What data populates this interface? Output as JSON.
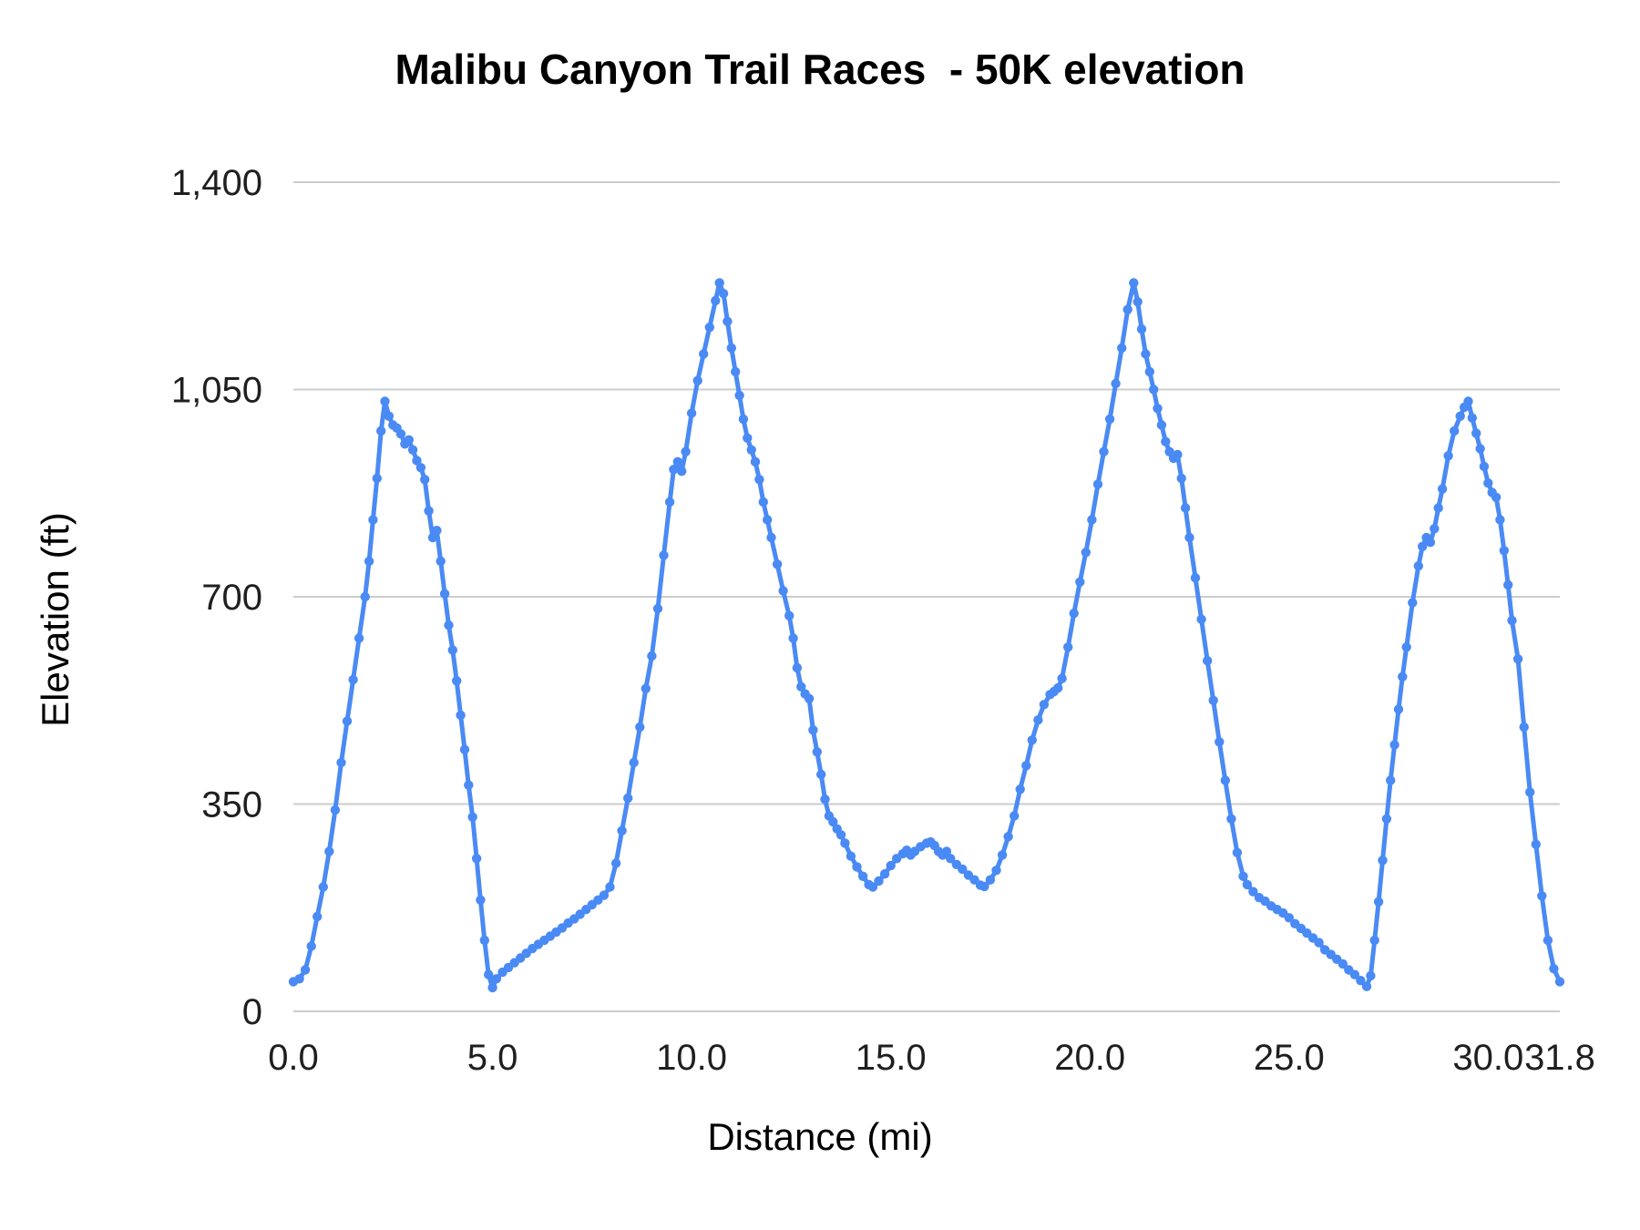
{
  "chart_data": {
    "type": "line",
    "title": "Malibu Canyon Trail Races  - 50K elevation",
    "xlabel": "Distance (mi)",
    "ylabel": "Elevation (ft)",
    "xlim": [
      0,
      31.8
    ],
    "ylim": [
      0,
      1400
    ],
    "grid": "horizontal",
    "legend": "none",
    "line_color": "#4a8af4",
    "grid_color": "#cccccc",
    "text_color": "#000000",
    "marker": true,
    "x_ticks": [
      {
        "v": 0,
        "label": "0.0"
      },
      {
        "v": 5,
        "label": "5.0"
      },
      {
        "v": 10,
        "label": "10.0"
      },
      {
        "v": 15,
        "label": "15.0"
      },
      {
        "v": 20,
        "label": "20.0"
      },
      {
        "v": 25,
        "label": "25.0"
      },
      {
        "v": 30,
        "label": "30.0"
      },
      {
        "v": 31.8,
        "label": "31.8"
      }
    ],
    "y_ticks": [
      {
        "v": 0,
        "label": "0"
      },
      {
        "v": 350,
        "label": "350"
      },
      {
        "v": 700,
        "label": "700"
      },
      {
        "v": 1050,
        "label": "1,050"
      },
      {
        "v": 1400,
        "label": "1,400"
      }
    ],
    "series": [
      {
        "name": "elevation",
        "points": [
          [
            0,
            50
          ],
          [
            0.15,
            55
          ],
          [
            0.3,
            70
          ],
          [
            0.45,
            110
          ],
          [
            0.6,
            160
          ],
          [
            0.75,
            210
          ],
          [
            0.9,
            270
          ],
          [
            1.05,
            340
          ],
          [
            1.2,
            420
          ],
          [
            1.35,
            490
          ],
          [
            1.5,
            560
          ],
          [
            1.65,
            630
          ],
          [
            1.8,
            700
          ],
          [
            1.9,
            760
          ],
          [
            2,
            830
          ],
          [
            2.1,
            900
          ],
          [
            2.2,
            980
          ],
          [
            2.3,
            1030
          ],
          [
            2.4,
            1005
          ],
          [
            2.5,
            990
          ],
          [
            2.6,
            985
          ],
          [
            2.7,
            975
          ],
          [
            2.8,
            958
          ],
          [
            2.9,
            965
          ],
          [
            3,
            948
          ],
          [
            3.1,
            930
          ],
          [
            3.2,
            918
          ],
          [
            3.3,
            898
          ],
          [
            3.4,
            845
          ],
          [
            3.5,
            800
          ],
          [
            3.6,
            812
          ],
          [
            3.7,
            760
          ],
          [
            3.8,
            705
          ],
          [
            3.9,
            652
          ],
          [
            4,
            610
          ],
          [
            4.1,
            558
          ],
          [
            4.2,
            500
          ],
          [
            4.3,
            442
          ],
          [
            4.4,
            382
          ],
          [
            4.5,
            328
          ],
          [
            4.6,
            258
          ],
          [
            4.7,
            188
          ],
          [
            4.8,
            120
          ],
          [
            4.9,
            62
          ],
          [
            5,
            40
          ],
          [
            5.1,
            55
          ],
          [
            5.25,
            66
          ],
          [
            5.4,
            74
          ],
          [
            5.55,
            82
          ],
          [
            5.7,
            90
          ],
          [
            5.85,
            98
          ],
          [
            6,
            106
          ],
          [
            6.15,
            113
          ],
          [
            6.3,
            120
          ],
          [
            6.45,
            127
          ],
          [
            6.6,
            134
          ],
          [
            6.75,
            141
          ],
          [
            6.9,
            149
          ],
          [
            7.05,
            156
          ],
          [
            7.2,
            164
          ],
          [
            7.35,
            172
          ],
          [
            7.5,
            180
          ],
          [
            7.65,
            188
          ],
          [
            7.8,
            196
          ],
          [
            7.95,
            210
          ],
          [
            8.1,
            250
          ],
          [
            8.25,
            305
          ],
          [
            8.4,
            360
          ],
          [
            8.55,
            420
          ],
          [
            8.7,
            480
          ],
          [
            8.85,
            545
          ],
          [
            9,
            600
          ],
          [
            9.15,
            680
          ],
          [
            9.3,
            770
          ],
          [
            9.45,
            860
          ],
          [
            9.55,
            915
          ],
          [
            9.65,
            928
          ],
          [
            9.75,
            912
          ],
          [
            9.85,
            945
          ],
          [
            10,
            1010
          ],
          [
            10.15,
            1065
          ],
          [
            10.3,
            1110
          ],
          [
            10.45,
            1155
          ],
          [
            10.6,
            1200
          ],
          [
            10.7,
            1230
          ],
          [
            10.8,
            1212
          ],
          [
            10.9,
            1165
          ],
          [
            11,
            1120
          ],
          [
            11.1,
            1080
          ],
          [
            11.2,
            1040
          ],
          [
            11.3,
            1000
          ],
          [
            11.4,
            968
          ],
          [
            11.5,
            948
          ],
          [
            11.6,
            928
          ],
          [
            11.7,
            898
          ],
          [
            11.8,
            860
          ],
          [
            11.9,
            830
          ],
          [
            12,
            800
          ],
          [
            12.15,
            755
          ],
          [
            12.3,
            710
          ],
          [
            12.45,
            668
          ],
          [
            12.55,
            630
          ],
          [
            12.65,
            580
          ],
          [
            12.75,
            548
          ],
          [
            12.85,
            536
          ],
          [
            12.95,
            528
          ],
          [
            13.05,
            475
          ],
          [
            13.15,
            438
          ],
          [
            13.25,
            400
          ],
          [
            13.35,
            358
          ],
          [
            13.45,
            330
          ],
          [
            13.55,
            320
          ],
          [
            13.65,
            308
          ],
          [
            13.75,
            298
          ],
          [
            13.85,
            284
          ],
          [
            14,
            262
          ],
          [
            14.15,
            244
          ],
          [
            14.3,
            228
          ],
          [
            14.45,
            214
          ],
          [
            14.55,
            210
          ],
          [
            14.7,
            220
          ],
          [
            14.85,
            232
          ],
          [
            15,
            246
          ],
          [
            15.15,
            258
          ],
          [
            15.3,
            266
          ],
          [
            15.4,
            272
          ],
          [
            15.5,
            264
          ],
          [
            15.6,
            270
          ],
          [
            15.75,
            278
          ],
          [
            15.9,
            284
          ],
          [
            16,
            286
          ],
          [
            16.1,
            280
          ],
          [
            16.2,
            270
          ],
          [
            16.3,
            264
          ],
          [
            16.4,
            270
          ],
          [
            16.5,
            258
          ],
          [
            16.65,
            248
          ],
          [
            16.8,
            240
          ],
          [
            16.95,
            230
          ],
          [
            17.1,
            222
          ],
          [
            17.25,
            213
          ],
          [
            17.35,
            211
          ],
          [
            17.5,
            222
          ],
          [
            17.65,
            238
          ],
          [
            17.8,
            264
          ],
          [
            17.95,
            295
          ],
          [
            18.1,
            330
          ],
          [
            18.25,
            375
          ],
          [
            18.4,
            415
          ],
          [
            18.55,
            458
          ],
          [
            18.7,
            492
          ],
          [
            18.85,
            518
          ],
          [
            19,
            535
          ],
          [
            19.1,
            540
          ],
          [
            19.2,
            546
          ],
          [
            19.3,
            562
          ],
          [
            19.45,
            615
          ],
          [
            19.6,
            672
          ],
          [
            19.75,
            725
          ],
          [
            19.9,
            775
          ],
          [
            20.05,
            830
          ],
          [
            20.2,
            890
          ],
          [
            20.35,
            945
          ],
          [
            20.5,
            1000
          ],
          [
            20.65,
            1060
          ],
          [
            20.8,
            1120
          ],
          [
            20.95,
            1185
          ],
          [
            21.1,
            1230
          ],
          [
            21.2,
            1198
          ],
          [
            21.3,
            1152
          ],
          [
            21.4,
            1110
          ],
          [
            21.5,
            1080
          ],
          [
            21.6,
            1050
          ],
          [
            21.7,
            1018
          ],
          [
            21.8,
            990
          ],
          [
            21.9,
            962
          ],
          [
            22,
            945
          ],
          [
            22.1,
            934
          ],
          [
            22.2,
            940
          ],
          [
            22.3,
            900
          ],
          [
            22.4,
            850
          ],
          [
            22.5,
            800
          ],
          [
            22.65,
            732
          ],
          [
            22.8,
            662
          ],
          [
            22.95,
            592
          ],
          [
            23.1,
            525
          ],
          [
            23.25,
            455
          ],
          [
            23.4,
            390
          ],
          [
            23.55,
            325
          ],
          [
            23.7,
            268
          ],
          [
            23.85,
            228
          ],
          [
            23.95,
            214
          ],
          [
            24.1,
            202
          ],
          [
            24.25,
            192
          ],
          [
            24.4,
            186
          ],
          [
            24.55,
            178
          ],
          [
            24.7,
            172
          ],
          [
            24.85,
            166
          ],
          [
            25,
            158
          ],
          [
            25.15,
            148
          ],
          [
            25.3,
            140
          ],
          [
            25.45,
            132
          ],
          [
            25.6,
            124
          ],
          [
            25.75,
            116
          ],
          [
            25.9,
            104
          ],
          [
            26.05,
            96
          ],
          [
            26.2,
            88
          ],
          [
            26.35,
            80
          ],
          [
            26.5,
            70
          ],
          [
            26.65,
            62
          ],
          [
            26.8,
            52
          ],
          [
            26.95,
            42
          ],
          [
            27.05,
            60
          ],
          [
            27.15,
            120
          ],
          [
            27.25,
            185
          ],
          [
            27.35,
            255
          ],
          [
            27.45,
            325
          ],
          [
            27.55,
            390
          ],
          [
            27.65,
            450
          ],
          [
            27.75,
            510
          ],
          [
            27.85,
            565
          ],
          [
            27.95,
            615
          ],
          [
            28.1,
            690
          ],
          [
            28.25,
            752
          ],
          [
            28.35,
            785
          ],
          [
            28.45,
            800
          ],
          [
            28.55,
            792
          ],
          [
            28.65,
            815
          ],
          [
            28.75,
            850
          ],
          [
            28.85,
            882
          ],
          [
            29,
            938
          ],
          [
            29.15,
            980
          ],
          [
            29.3,
            1005
          ],
          [
            29.4,
            1020
          ],
          [
            29.5,
            1030
          ],
          [
            29.6,
            1002
          ],
          [
            29.7,
            976
          ],
          [
            29.8,
            950
          ],
          [
            29.9,
            920
          ],
          [
            30,
            892
          ],
          [
            30.1,
            876
          ],
          [
            30.2,
            868
          ],
          [
            30.3,
            830
          ],
          [
            30.4,
            778
          ],
          [
            30.5,
            720
          ],
          [
            30.6,
            660
          ],
          [
            30.75,
            595
          ],
          [
            30.9,
            480
          ],
          [
            31.05,
            370
          ],
          [
            31.2,
            282
          ],
          [
            31.35,
            195
          ],
          [
            31.5,
            120
          ],
          [
            31.65,
            72
          ],
          [
            31.8,
            50
          ]
        ]
      }
    ]
  }
}
